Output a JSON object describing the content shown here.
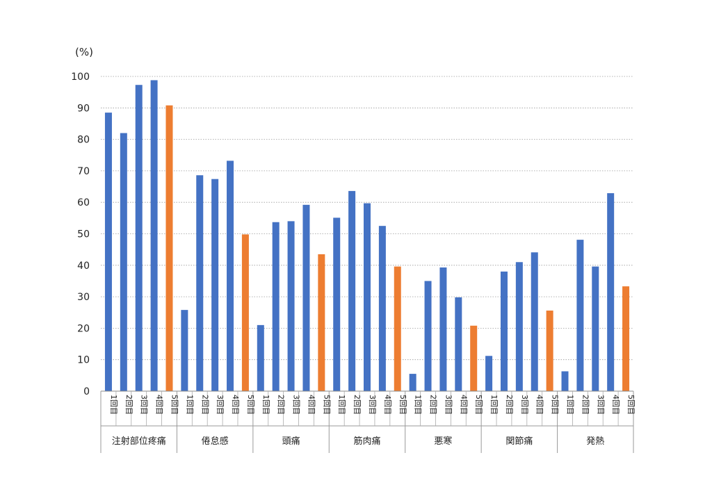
{
  "chart_data": {
    "type": "bar",
    "unit_label": "(%)",
    "title": "",
    "xlabel": "",
    "ylabel": "(%)",
    "ylim": [
      0,
      100
    ],
    "yticks": [
      0,
      10,
      20,
      30,
      40,
      50,
      60,
      70,
      80,
      90,
      100
    ],
    "grid": true,
    "legend": "none",
    "bar_labels": [
      "1回目",
      "2回目",
      "3回目",
      "4回目",
      "5回目"
    ],
    "colors": {
      "previous": "#4472C4",
      "fifth": "#ED7D31"
    },
    "groups": [
      {
        "name": "注射部位疼痛",
        "values": [
          88.5,
          82,
          97.3,
          98.8,
          90.8
        ]
      },
      {
        "name": "倦怠感",
        "values": [
          25.8,
          68.6,
          67.4,
          73.2,
          49.8
        ]
      },
      {
        "name": "頭痛",
        "values": [
          21,
          53.7,
          54,
          59.2,
          43.5
        ]
      },
      {
        "name": "筋肉痛",
        "values": [
          55.1,
          63.6,
          59.7,
          52.5,
          39.6
        ]
      },
      {
        "name": "悪寒",
        "values": [
          5.5,
          35,
          39.3,
          29.8,
          20.8
        ]
      },
      {
        "name": "関節痛",
        "values": [
          11.2,
          38,
          41,
          44.1,
          25.6
        ]
      },
      {
        "name": "発熱",
        "values": [
          6.3,
          48.1,
          39.6,
          62.9,
          33.3
        ]
      }
    ]
  }
}
